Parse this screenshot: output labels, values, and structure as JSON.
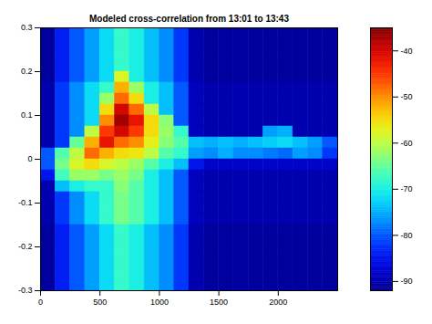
{
  "chart_data": {
    "type": "heatmap",
    "title": "Modeled cross-correlation from 13:01 to 13:43",
    "xlim": [
      0,
      2500
    ],
    "ylim": [
      -0.3,
      0.3
    ],
    "xticks": [
      0,
      500,
      1000,
      1500,
      2000
    ],
    "yticks": [
      -0.3,
      -0.2,
      -0.1,
      0,
      0.1,
      0.2,
      0.3
    ],
    "x_edges": [
      0,
      125,
      250,
      375,
      500,
      625,
      750,
      875,
      1000,
      1125,
      1250,
      1375,
      1500,
      1625,
      1750,
      1875,
      2000,
      2125,
      2250,
      2375,
      2500
    ],
    "y_edges": [
      0.3,
      0.275,
      0.25,
      0.225,
      0.2,
      0.175,
      0.15,
      0.125,
      0.1,
      0.075,
      0.05,
      0.025,
      0,
      -0.025,
      -0.05,
      -0.075,
      -0.1,
      -0.125,
      -0.15,
      -0.175,
      -0.2,
      -0.225,
      -0.25,
      -0.275,
      -0.3
    ],
    "values": [
      [
        -91,
        -84,
        -80,
        -76,
        -72,
        -68,
        -70,
        -74,
        -77,
        -82,
        -90,
        -91,
        -91,
        -91,
        -91,
        -91,
        -91,
        -91,
        -91,
        -91
      ],
      [
        -91,
        -84,
        -80,
        -76,
        -72,
        -68,
        -70,
        -74,
        -77,
        -82,
        -90,
        -91,
        -91,
        -91,
        -91,
        -91,
        -91,
        -91,
        -91,
        -91
      ],
      [
        -91,
        -84,
        -80,
        -76,
        -72,
        -68,
        -70,
        -74,
        -77,
        -82,
        -90,
        -91,
        -91,
        -91,
        -91,
        -91,
        -91,
        -91,
        -91,
        -91
      ],
      [
        -91,
        -84,
        -80,
        -76,
        -72,
        -68,
        -70,
        -74,
        -77,
        -82,
        -90,
        -91,
        -91,
        -91,
        -91,
        -91,
        -91,
        -91,
        -91,
        -91
      ],
      [
        -91,
        -84,
        -80,
        -76,
        -72,
        -58,
        -70,
        -74,
        -77,
        -82,
        -90,
        -91,
        -91,
        -91,
        -91,
        -91,
        -91,
        -91,
        -91,
        -91
      ],
      [
        -90,
        -82,
        -77,
        -72,
        -68,
        -52,
        -62,
        -70,
        -74,
        -80,
        -89,
        -90,
        -90,
        -90,
        -90,
        -90,
        -90,
        -90,
        -90,
        -90
      ],
      [
        -90,
        -82,
        -77,
        -72,
        -62,
        -48,
        -55,
        -70,
        -74,
        -80,
        -89,
        -90,
        -90,
        -90,
        -90,
        -90,
        -90,
        -90,
        -90,
        -90
      ],
      [
        -90,
        -82,
        -77,
        -72,
        -55,
        -40,
        -48,
        -60,
        -74,
        -80,
        -89,
        -90,
        -90,
        -90,
        -90,
        -90,
        -90,
        -90,
        -90,
        -90
      ],
      [
        -90,
        -82,
        -77,
        -72,
        -50,
        -37,
        -42,
        -55,
        -63,
        -80,
        -89,
        -90,
        -90,
        -90,
        -90,
        -90,
        -90,
        -90,
        -90,
        -90
      ],
      [
        -90,
        -82,
        -77,
        -60,
        -45,
        -40,
        -45,
        -55,
        -62,
        -68,
        -89,
        -90,
        -90,
        -90,
        -90,
        -76,
        -75,
        -90,
        -90,
        -90
      ],
      [
        -90,
        -82,
        -65,
        -52,
        -42,
        -48,
        -50,
        -57,
        -63,
        -66,
        -74,
        -75,
        -74,
        -75,
        -74,
        -73,
        -72,
        -74,
        -76,
        -80
      ],
      [
        -80,
        -66,
        -60,
        -48,
        -52,
        -55,
        -56,
        -60,
        -66,
        -68,
        -76,
        -77,
        -75,
        -77,
        -77,
        -78,
        -79,
        -76,
        -77,
        -82
      ],
      [
        -80,
        -64,
        -58,
        -55,
        -58,
        -60,
        -62,
        -66,
        -70,
        -74,
        -85,
        -88,
        -88,
        -88,
        -88,
        -88,
        -88,
        -88,
        -88,
        -88
      ],
      [
        -85,
        -67,
        -62,
        -62,
        -64,
        -62,
        -64,
        -70,
        -74,
        -80,
        -89,
        -90,
        -90,
        -90,
        -90,
        -90,
        -90,
        -90,
        -90,
        -90
      ],
      [
        -90,
        -74,
        -70,
        -68,
        -68,
        -63,
        -66,
        -70,
        -74,
        -80,
        -89,
        -90,
        -90,
        -90,
        -90,
        -90,
        -90,
        -90,
        -90,
        -90
      ],
      [
        -90,
        -82,
        -77,
        -72,
        -68,
        -64,
        -66,
        -70,
        -74,
        -80,
        -89,
        -90,
        -90,
        -90,
        -90,
        -90,
        -90,
        -90,
        -90,
        -90
      ],
      [
        -90,
        -82,
        -77,
        -72,
        -68,
        -64,
        -66,
        -70,
        -74,
        -80,
        -89,
        -90,
        -90,
        -90,
        -90,
        -90,
        -90,
        -90,
        -90,
        -90
      ],
      [
        -90,
        -82,
        -77,
        -72,
        -68,
        -64,
        -66,
        -70,
        -74,
        -80,
        -89,
        -90,
        -90,
        -90,
        -90,
        -90,
        -90,
        -90,
        -90,
        -90
      ],
      [
        -91,
        -84,
        -80,
        -76,
        -72,
        -68,
        -70,
        -74,
        -77,
        -82,
        -90,
        -91,
        -91,
        -91,
        -91,
        -91,
        -91,
        -91,
        -91,
        -91
      ],
      [
        -91,
        -84,
        -80,
        -76,
        -72,
        -68,
        -70,
        -74,
        -77,
        -82,
        -90,
        -91,
        -91,
        -91,
        -91,
        -91,
        -91,
        -91,
        -91,
        -91
      ],
      [
        -91,
        -84,
        -80,
        -76,
        -72,
        -68,
        -70,
        -74,
        -77,
        -82,
        -90,
        -91,
        -91,
        -91,
        -91,
        -91,
        -91,
        -91,
        -91,
        -91
      ],
      [
        -91,
        -84,
        -80,
        -76,
        -72,
        -68,
        -70,
        -74,
        -77,
        -82,
        -90,
        -91,
        -91,
        -91,
        -91,
        -91,
        -91,
        -91,
        -91,
        -91
      ],
      [
        -91,
        -84,
        -80,
        -76,
        -72,
        -68,
        -70,
        -74,
        -77,
        -82,
        -90,
        -91,
        -91,
        -91,
        -91,
        -91,
        -91,
        -91,
        -91,
        -91
      ],
      [
        -91,
        -84,
        -80,
        -76,
        -72,
        -68,
        -70,
        -74,
        -77,
        -82,
        -90,
        -91,
        -91,
        -91,
        -91,
        -91,
        -91,
        -91,
        -91,
        -91
      ]
    ],
    "color_range": [
      -92,
      -35
    ],
    "color_ticks": [
      -90,
      -80,
      -70,
      -60,
      -50,
      -40
    ]
  }
}
